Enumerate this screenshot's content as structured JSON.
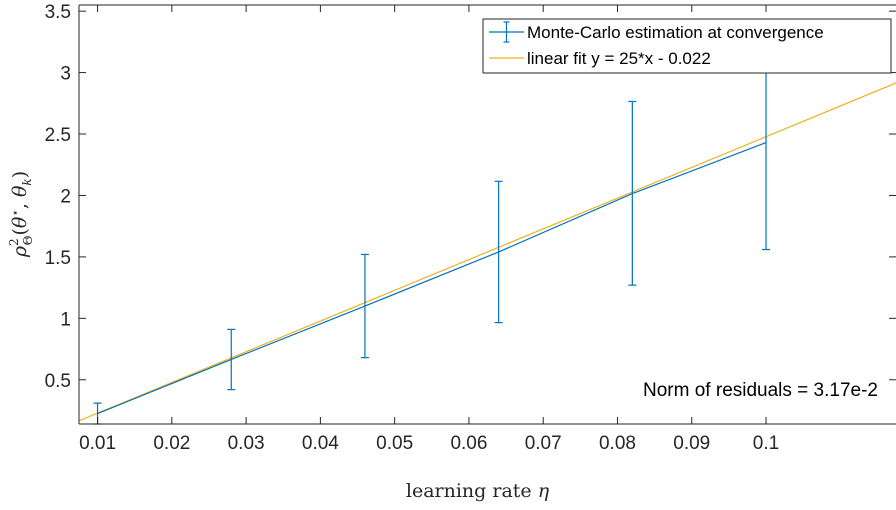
{
  "chart_data": {
    "type": "scatter",
    "xlabel": "learning rate η",
    "ylabel": "ρ²_Θ(θ*, θ_k)",
    "xlim": [
      0.0075,
      0.1175
    ],
    "ylim": [
      0.14,
      3.55
    ],
    "xticks": [
      0.01,
      0.02,
      0.03,
      0.04,
      0.05,
      0.06,
      0.07,
      0.08,
      0.09,
      0.1
    ],
    "xtick_labels": [
      "0.01",
      "0.02",
      "0.03",
      "0.04",
      "0.05",
      "0.06",
      "0.07",
      "0.08",
      "0.09",
      "0.1"
    ],
    "yticks": [
      0.5,
      1,
      1.5,
      2,
      2.5,
      3,
      3.5
    ],
    "ytick_labels": [
      "0.5",
      "1",
      "1.5",
      "2",
      "2.5",
      "3",
      "3.5"
    ],
    "grid": false,
    "legend_position": "top-right",
    "series": [
      {
        "name": "Monte-Carlo estimation at convergence",
        "kind": "errorbar",
        "color": "#0072BD",
        "x": [
          0.01,
          0.028,
          0.046,
          0.064,
          0.082,
          0.1
        ],
        "y": [
          0.225,
          0.665,
          1.1,
          1.54,
          2.015,
          2.43
        ],
        "lower": [
          0.14,
          0.42,
          0.68,
          0.965,
          1.27,
          1.56
        ],
        "upper": [
          0.31,
          0.91,
          1.52,
          2.115,
          2.765,
          3.04
        ]
      },
      {
        "name": "linear fit y = 25*x - 0.022",
        "kind": "line",
        "color": "#EDB120",
        "slope": 25,
        "intercept": -0.022,
        "x_range": [
          0.0075,
          0.1175
        ]
      }
    ],
    "annotations": [
      {
        "text": "Norm of residuals = 3.17e-2",
        "position": "lower-right"
      }
    ]
  }
}
